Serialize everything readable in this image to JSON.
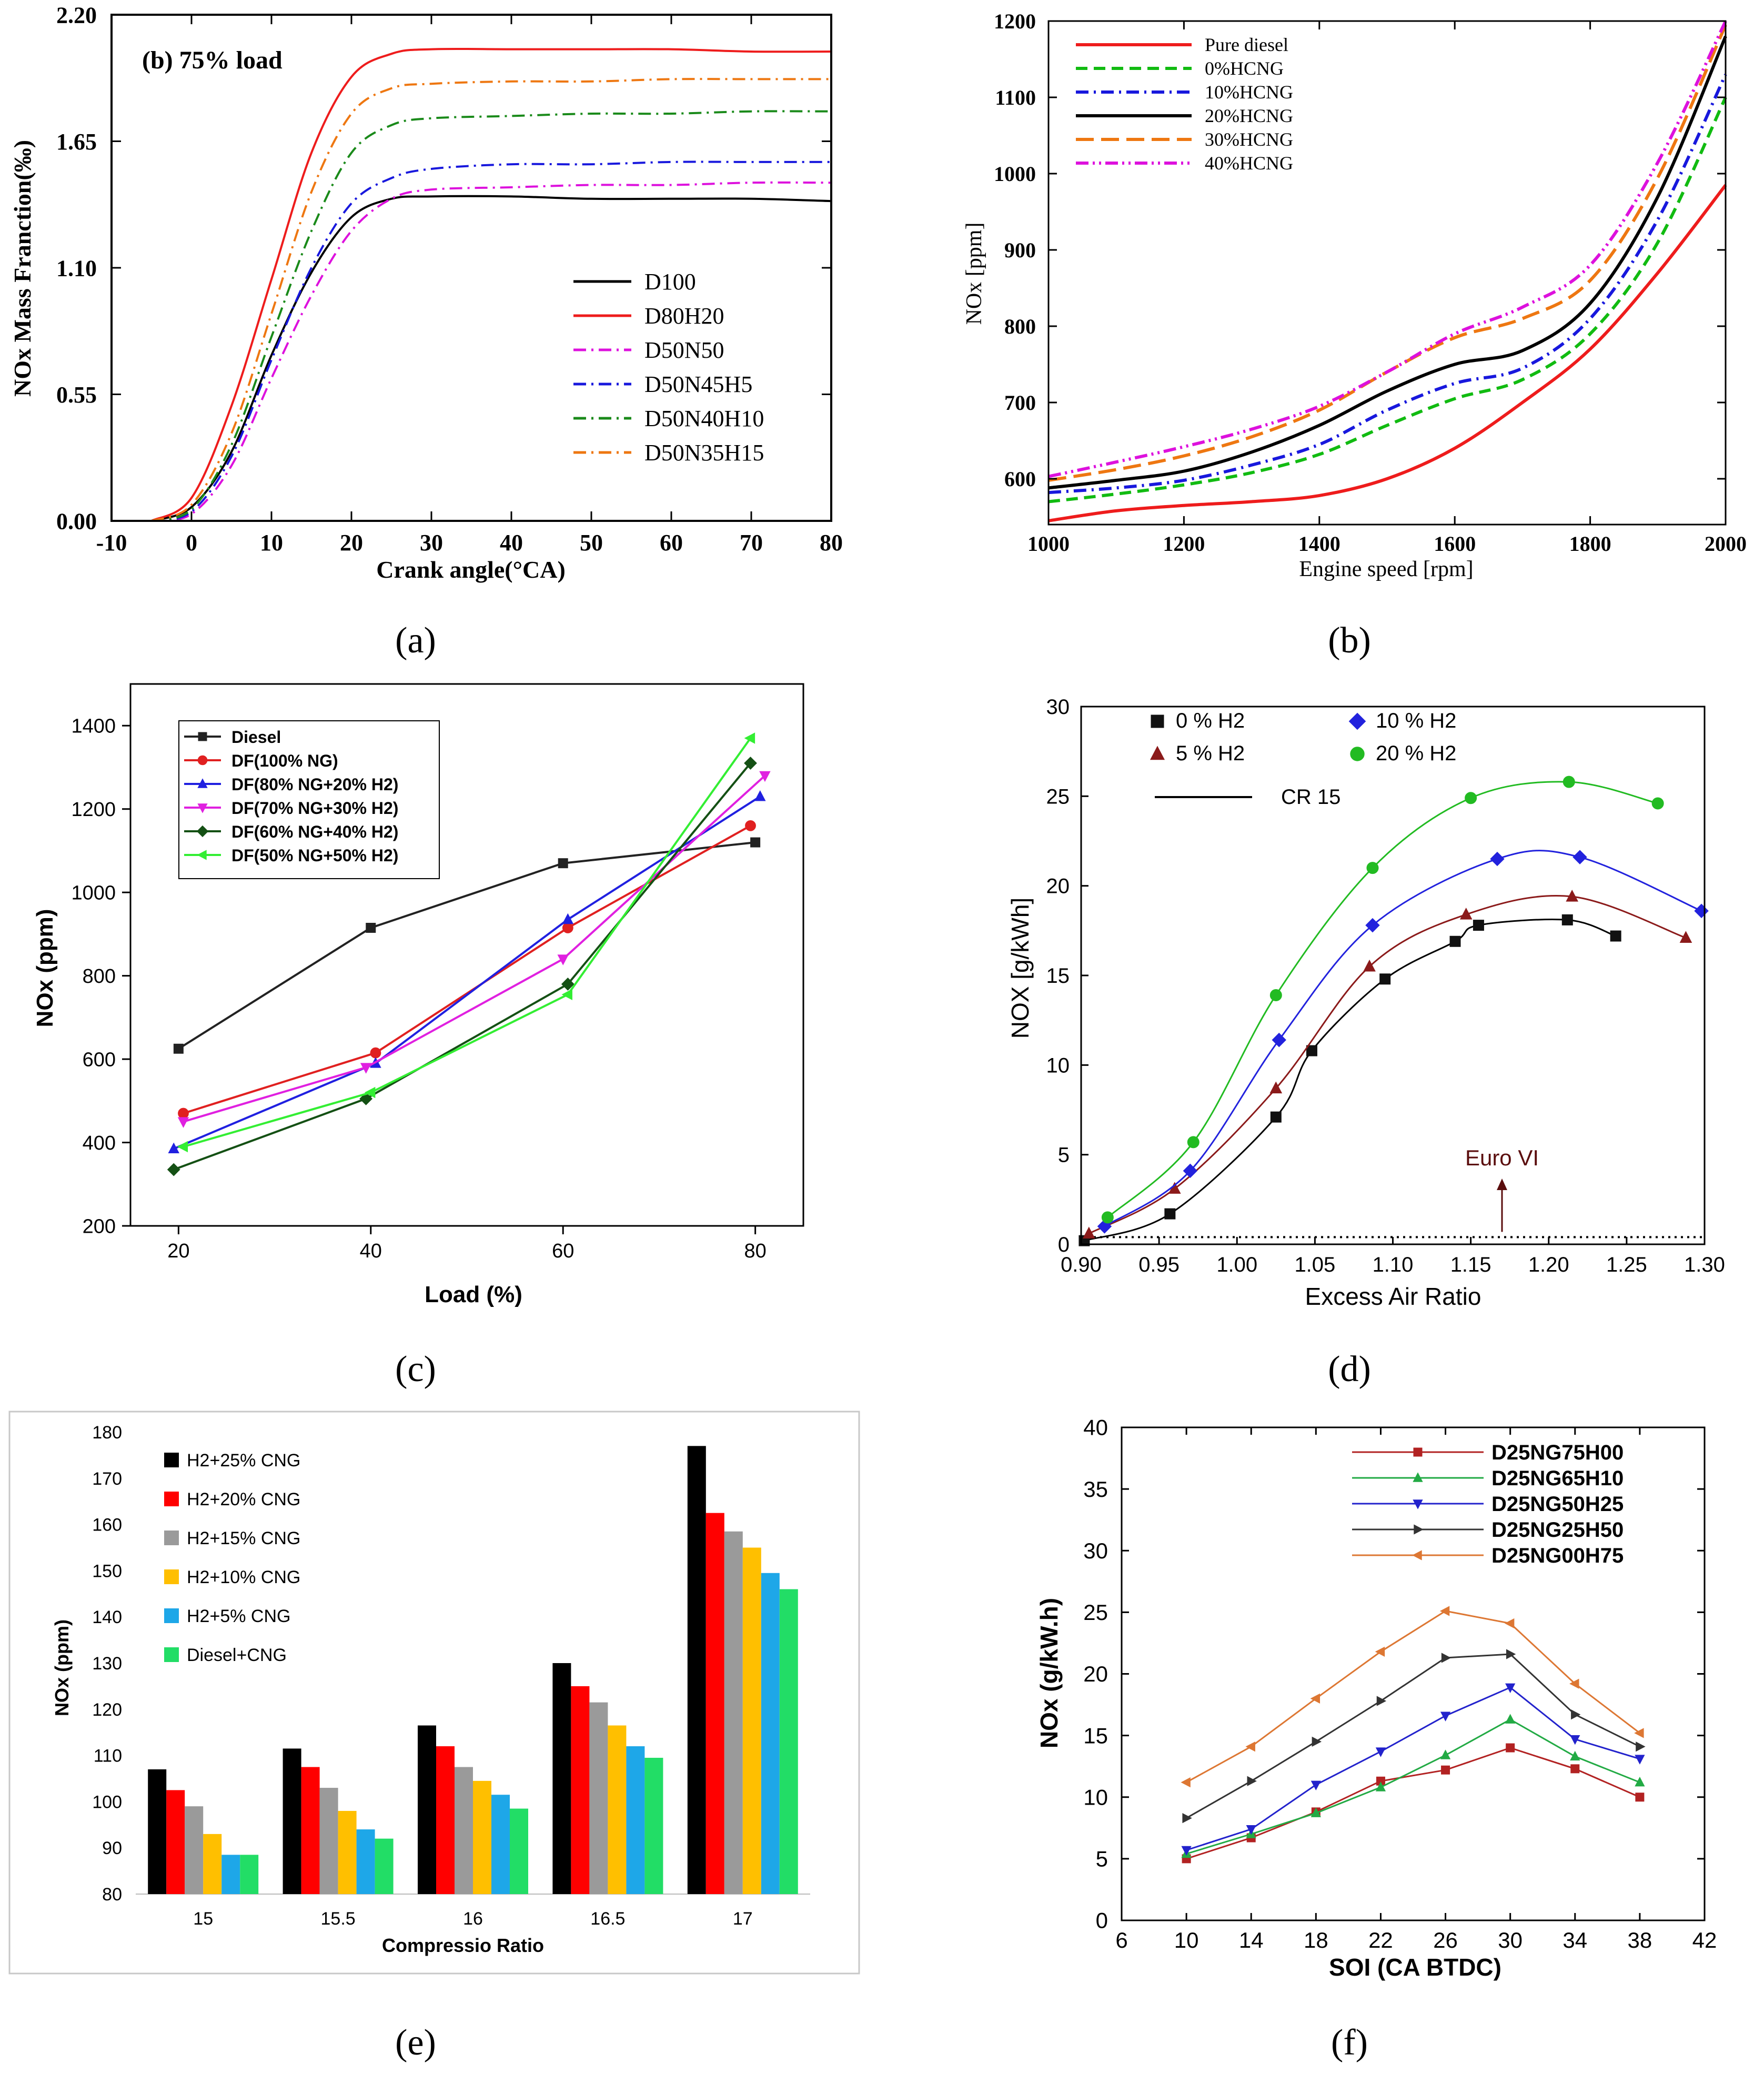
{
  "figure": {
    "panel_labels": [
      "(a)",
      "(b)",
      "(c)",
      "(d)",
      "(e)",
      "(f)"
    ]
  },
  "chart_data": [
    {
      "id": "a",
      "type": "line",
      "annotation": "(b) 75% load",
      "xlabel": "Crank angle(°CA)",
      "ylabel": "NOx Mass Franction(‰)",
      "xlim": [
        -10,
        80
      ],
      "ylim": [
        0,
        2.2
      ],
      "xticks": [
        "-10",
        "0",
        "10",
        "20",
        "30",
        "40",
        "50",
        "60",
        "70",
        "80"
      ],
      "yticks": [
        "0.00",
        "0.55",
        "1.10",
        "1.65",
        "2.20"
      ],
      "legend_position": "center-right",
      "series": [
        {
          "name": "D100",
          "color": "#000000",
          "dash": "solid",
          "x": [
            -5,
            0,
            5,
            10,
            15,
            20,
            25,
            30,
            40,
            50,
            60,
            70,
            80
          ],
          "y": [
            0,
            0.06,
            0.3,
            0.72,
            1.08,
            1.32,
            1.4,
            1.41,
            1.41,
            1.4,
            1.4,
            1.4,
            1.39
          ]
        },
        {
          "name": "D80H20",
          "color": "#ee1c1c",
          "dash": "solid",
          "x": [
            -5,
            0,
            5,
            10,
            15,
            20,
            25,
            30,
            40,
            50,
            60,
            70,
            80
          ],
          "y": [
            0,
            0.1,
            0.5,
            1.05,
            1.6,
            1.93,
            2.03,
            2.05,
            2.05,
            2.05,
            2.05,
            2.04,
            2.04
          ]
        },
        {
          "name": "D50N50",
          "color": "#dd11dd",
          "dash": "dashdot",
          "x": [
            -5,
            0,
            5,
            10,
            15,
            20,
            25,
            30,
            40,
            50,
            60,
            70,
            80
          ],
          "y": [
            0,
            0.03,
            0.24,
            0.62,
            0.98,
            1.26,
            1.4,
            1.44,
            1.45,
            1.46,
            1.46,
            1.47,
            1.47
          ]
        },
        {
          "name": "D50N45H5",
          "color": "#1818dd",
          "dash": "dashdot",
          "x": [
            -5,
            0,
            5,
            10,
            15,
            20,
            25,
            30,
            40,
            50,
            60,
            70,
            80
          ],
          "y": [
            0,
            0.04,
            0.28,
            0.7,
            1.1,
            1.38,
            1.49,
            1.53,
            1.55,
            1.55,
            1.56,
            1.56,
            1.56
          ]
        },
        {
          "name": "D50N40H10",
          "color": "#1a8a1a",
          "dash": "dashdot",
          "x": [
            -5,
            0,
            5,
            10,
            15,
            20,
            25,
            30,
            40,
            50,
            60,
            70,
            80
          ],
          "y": [
            0,
            0.05,
            0.33,
            0.8,
            1.26,
            1.6,
            1.72,
            1.75,
            1.76,
            1.77,
            1.77,
            1.78,
            1.78
          ]
        },
        {
          "name": "D50N35H15",
          "color": "#ee7711",
          "dash": "dashdot",
          "x": [
            -5,
            0,
            5,
            10,
            15,
            20,
            25,
            30,
            40,
            50,
            60,
            70,
            80
          ],
          "y": [
            0,
            0.07,
            0.38,
            0.9,
            1.43,
            1.77,
            1.88,
            1.9,
            1.91,
            1.91,
            1.92,
            1.92,
            1.92
          ]
        }
      ]
    },
    {
      "id": "b",
      "type": "line",
      "xlabel": "Engine speed [rpm]",
      "ylabel": "NOx [ppm]",
      "xlim": [
        1000,
        2000
      ],
      "ylim": [
        540,
        1200
      ],
      "xticks": [
        "1000",
        "1200",
        "1400",
        "1600",
        "1800",
        "2000"
      ],
      "yticks": [
        "600",
        "700",
        "800",
        "900",
        "1000",
        "1100",
        "1200"
      ],
      "legend_position": "top-left",
      "series": [
        {
          "name": "Pure diesel",
          "color": "#ee1c1c",
          "dash": "solid",
          "x": [
            1000,
            1100,
            1200,
            1300,
            1400,
            1500,
            1600,
            1700,
            1800,
            1900,
            2000
          ],
          "y": [
            545,
            558,
            565,
            570,
            578,
            600,
            640,
            700,
            770,
            870,
            985
          ]
        },
        {
          "name": "0%HCNG",
          "color": "#11bb11",
          "dash": "dash",
          "x": [
            1000,
            1100,
            1200,
            1300,
            1400,
            1500,
            1600,
            1700,
            1800,
            1900,
            2000
          ],
          "y": [
            570,
            580,
            592,
            608,
            632,
            670,
            705,
            730,
            790,
            910,
            1100
          ]
        },
        {
          "name": "10%HCNG",
          "color": "#1818dd",
          "dash": "dashdot",
          "x": [
            1000,
            1100,
            1200,
            1300,
            1400,
            1500,
            1600,
            1700,
            1800,
            1900,
            2000
          ],
          "y": [
            582,
            588,
            598,
            618,
            645,
            690,
            725,
            745,
            810,
            940,
            1130
          ]
        },
        {
          "name": "20%HCNG",
          "color": "#000000",
          "dash": "solid",
          "x": [
            1000,
            1100,
            1200,
            1300,
            1400,
            1500,
            1600,
            1700,
            1800,
            1900,
            2000
          ],
          "y": [
            588,
            598,
            610,
            635,
            670,
            715,
            750,
            768,
            830,
            970,
            1180
          ]
        },
        {
          "name": "30%HCNG",
          "color": "#ee7711",
          "dash": "longdash",
          "x": [
            1000,
            1100,
            1200,
            1300,
            1400,
            1500,
            1600,
            1700,
            1800,
            1900,
            2000
          ],
          "y": [
            598,
            612,
            630,
            655,
            690,
            740,
            785,
            810,
            860,
            995,
            1195
          ]
        },
        {
          "name": "40%HCNG",
          "color": "#dd11dd",
          "dash": "dashdotdot",
          "x": [
            1000,
            1100,
            1200,
            1300,
            1400,
            1500,
            1600,
            1700,
            1800,
            1900,
            2000
          ],
          "y": [
            603,
            622,
            642,
            665,
            695,
            740,
            790,
            825,
            880,
            1015,
            1200
          ]
        }
      ]
    },
    {
      "id": "c",
      "type": "line",
      "xlabel": "Load (%)",
      "ylabel": "NOx (ppm)",
      "xlim": [
        15,
        85
      ],
      "ylim": [
        200,
        1500
      ],
      "xticks": [
        "20",
        "40",
        "60",
        "80"
      ],
      "yticks": [
        "200",
        "400",
        "600",
        "800",
        "1000",
        "1200",
        "1400"
      ],
      "legend_position": "top-left",
      "series": [
        {
          "name": "Diesel",
          "color": "#222222",
          "marker": "square",
          "x": [
            20,
            40,
            60,
            80
          ],
          "y": [
            625,
            915,
            1070,
            1120
          ]
        },
        {
          "name": "DF(100% NG)",
          "color": "#e02020",
          "marker": "circle",
          "x": [
            20.5,
            40.5,
            60.5,
            79.5
          ],
          "y": [
            470,
            615,
            915,
            1160
          ]
        },
        {
          "name": "DF(80% NG+20% H2)",
          "color": "#2020e0",
          "marker": "triangle-up",
          "x": [
            19.5,
            40.5,
            60.5,
            80.5
          ],
          "y": [
            385,
            590,
            935,
            1230
          ]
        },
        {
          "name": "DF(70% NG+30% H2)",
          "color": "#e020e0",
          "marker": "triangle-down",
          "x": [
            20.5,
            39.5,
            60,
            81
          ],
          "y": [
            450,
            580,
            840,
            1280
          ]
        },
        {
          "name": "DF(60% NG+40% H2)",
          "color": "#145014",
          "marker": "diamond",
          "x": [
            19.5,
            39.5,
            60.5,
            79.5
          ],
          "y": [
            335,
            505,
            780,
            1310
          ]
        },
        {
          "name": "DF(50% NG+50% H2)",
          "color": "#33ee33",
          "marker": "triangle-left",
          "x": [
            20.5,
            40,
            60.5,
            79.5
          ],
          "y": [
            390,
            520,
            755,
            1370
          ]
        }
      ]
    },
    {
      "id": "d",
      "type": "scatter",
      "xlabel": "Excess Air Ratio",
      "ylabel": "NOX [g/kWh]",
      "xlim": [
        0.9,
        1.3
      ],
      "ylim": [
        0,
        30
      ],
      "xticks": [
        "0.90",
        "0.95",
        "1.00",
        "1.05",
        "1.10",
        "1.15",
        "1.20",
        "1.25",
        "1.30"
      ],
      "yticks": [
        "0",
        "5",
        "10",
        "15",
        "20",
        "25",
        "30"
      ],
      "legend_position": "top-left",
      "legend_line_label": "CR 15",
      "annotation": "Euro VI",
      "euro_vi_level": 0.4,
      "series": [
        {
          "name": "0 % H2",
          "color": "#111111",
          "marker": "square",
          "x": [
            0.902,
            0.957,
            1.025,
            1.048,
            1.095,
            1.14,
            1.155,
            1.212,
            1.243
          ],
          "y": [
            0.2,
            1.7,
            7.1,
            10.8,
            14.8,
            16.9,
            17.8,
            18.1,
            17.2
          ]
        },
        {
          "name": "5 % H2",
          "color": "#8b1a1a",
          "marker": "triangle-up",
          "x": [
            0.905,
            0.96,
            1.025,
            1.085,
            1.147,
            1.215,
            1.288
          ],
          "y": [
            0.6,
            3.1,
            8.7,
            15.5,
            18.4,
            19.4,
            17.1
          ]
        },
        {
          "name": "10 % H2",
          "color": "#2222dd",
          "marker": "diamond",
          "x": [
            0.915,
            0.97,
            1.027,
            1.087,
            1.167,
            1.22,
            1.298
          ],
          "y": [
            1.0,
            4.1,
            11.4,
            17.8,
            21.5,
            21.6,
            18.6
          ]
        },
        {
          "name": "20 % H2",
          "color": "#22bb22",
          "marker": "circle",
          "x": [
            0.917,
            0.972,
            1.025,
            1.087,
            1.15,
            1.213,
            1.27
          ],
          "y": [
            1.5,
            5.7,
            13.9,
            21.0,
            24.9,
            25.8,
            24.6
          ]
        }
      ]
    },
    {
      "id": "e",
      "type": "bar",
      "xlabel": "Compressio Ratio",
      "ylabel": "NOx (ppm)",
      "ylim": [
        80,
        180
      ],
      "yticks": [
        "80",
        "90",
        "100",
        "110",
        "120",
        "130",
        "140",
        "150",
        "160",
        "170",
        "180"
      ],
      "categories": [
        "15",
        "15.5",
        "16",
        "16.5",
        "17"
      ],
      "legend_position": "top-left",
      "series": [
        {
          "name": "H2+25% CNG",
          "color": "#000000",
          "values": [
            107,
            111.5,
            116.5,
            130,
            177
          ]
        },
        {
          "name": "H2+20% CNG",
          "color": "#ff0000",
          "values": [
            102.5,
            107.5,
            112,
            125,
            162.5
          ]
        },
        {
          "name": "H2+15% CNG",
          "color": "#9a9a9a",
          "values": [
            99,
            103,
            107.5,
            121.5,
            158.5
          ]
        },
        {
          "name": "H2+10% CNG",
          "color": "#ffbf00",
          "values": [
            93,
            98,
            104.5,
            116.5,
            155
          ]
        },
        {
          "name": "H2+5% CNG",
          "color": "#1ea7e8",
          "values": [
            88.5,
            94,
            101.5,
            112,
            149.5
          ]
        },
        {
          "name": "Diesel+CNG",
          "color": "#22dd66",
          "values": [
            88.5,
            92,
            98.5,
            109.5,
            146
          ]
        }
      ]
    },
    {
      "id": "f",
      "type": "line",
      "xlabel": "SOI (CA BTDC)",
      "ylabel": "NOx (g/kW.h)",
      "xlim": [
        6,
        42
      ],
      "ylim": [
        0,
        40
      ],
      "xticks": [
        "6",
        "10",
        "14",
        "18",
        "22",
        "26",
        "30",
        "34",
        "38",
        "42"
      ],
      "yticks": [
        "0",
        "5",
        "10",
        "15",
        "20",
        "25",
        "30",
        "35",
        "40"
      ],
      "legend_position": "top-right",
      "series": [
        {
          "name": "D25NG75H00",
          "color": "#b22222",
          "marker": "square",
          "x": [
            10,
            14,
            18,
            22,
            26,
            30,
            34,
            38
          ],
          "y": [
            5.0,
            6.7,
            8.8,
            11.3,
            12.2,
            14.0,
            12.3,
            10.0
          ]
        },
        {
          "name": "D25NG65H10",
          "color": "#22aa44",
          "marker": "triangle-up",
          "x": [
            10,
            14,
            18,
            22,
            26,
            30,
            34,
            38
          ],
          "y": [
            5.4,
            7.0,
            8.7,
            10.8,
            13.4,
            16.3,
            13.3,
            11.2
          ]
        },
        {
          "name": "D25NG50H25",
          "color": "#2222cc",
          "marker": "triangle-down",
          "x": [
            10,
            14,
            18,
            22,
            26,
            30,
            34,
            38
          ],
          "y": [
            5.7,
            7.4,
            11.0,
            13.7,
            16.6,
            18.9,
            14.7,
            13.1
          ]
        },
        {
          "name": "D25NG25H50",
          "color": "#333333",
          "marker": "triangle-right",
          "x": [
            10,
            14,
            18,
            22,
            26,
            30,
            34,
            38
          ],
          "y": [
            8.3,
            11.3,
            14.5,
            17.8,
            21.3,
            21.6,
            16.7,
            14.1
          ]
        },
        {
          "name": "D25NG00H75",
          "color": "#dd7733",
          "marker": "triangle-left",
          "x": [
            10,
            14,
            18,
            22,
            26,
            30,
            34,
            38
          ],
          "y": [
            11.2,
            14.1,
            18.0,
            21.8,
            25.1,
            24.1,
            19.2,
            15.2
          ]
        }
      ]
    }
  ]
}
